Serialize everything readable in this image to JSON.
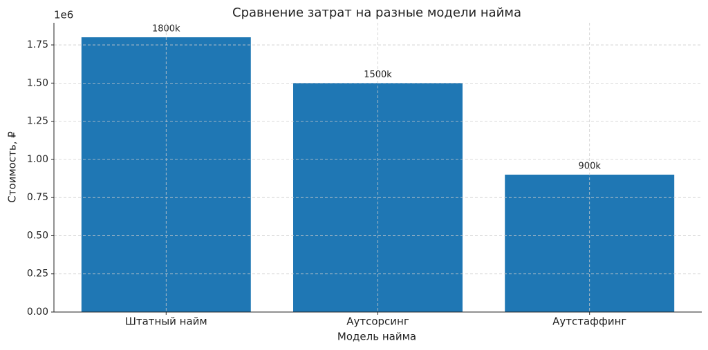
{
  "chart_data": {
    "type": "bar",
    "title": "Сравнение затрат на разные модели найма",
    "x_label": "Модель найма",
    "y_label": "Стоимость, ₽",
    "y_offset_label": "1e6",
    "categories": [
      "Штатный найм",
      "Аутсорсинг",
      "Аутстаффинг"
    ],
    "values": [
      1800000,
      1500000,
      900000
    ],
    "value_labels": [
      "1800k",
      "1500k",
      "900k"
    ],
    "color": "#1f77b4",
    "ylim": [
      0,
      1895000
    ],
    "yticks": [
      {
        "value": 0,
        "label": "0.00"
      },
      {
        "value": 250000,
        "label": "0.25"
      },
      {
        "value": 500000,
        "label": "0.50"
      },
      {
        "value": 750000,
        "label": "0.75"
      },
      {
        "value": 1000000,
        "label": "1.00"
      },
      {
        "value": 1250000,
        "label": "1.25"
      },
      {
        "value": 1500000,
        "label": "1.50"
      },
      {
        "value": 1750000,
        "label": "1.75"
      }
    ],
    "grid": true
  }
}
